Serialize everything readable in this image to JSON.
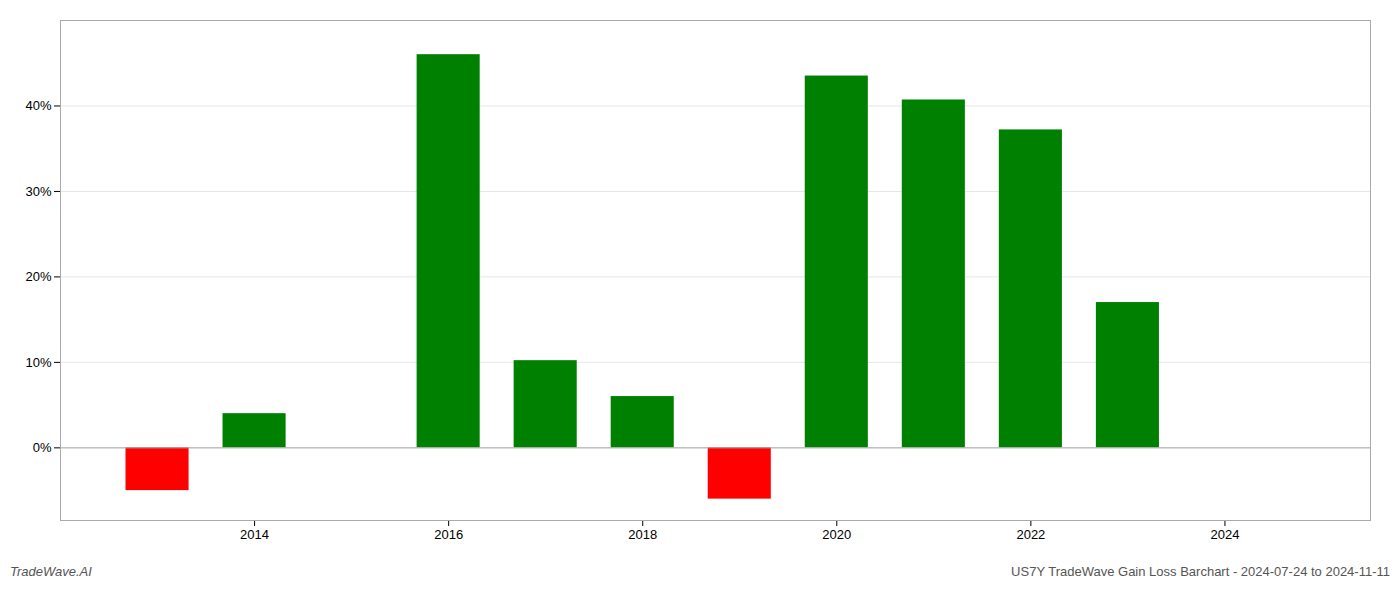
{
  "chart_data": {
    "type": "bar",
    "x": [
      2013,
      2014,
      2016,
      2017,
      2018,
      2019,
      2020,
      2021,
      2022,
      2023
    ],
    "values": [
      -5.0,
      4.0,
      46.0,
      10.2,
      6.0,
      -6.0,
      43.5,
      40.7,
      37.2,
      17.0
    ],
    "colors": [
      "#ff0000",
      "#008000",
      "#008000",
      "#008000",
      "#008000",
      "#ff0000",
      "#008000",
      "#008000",
      "#008000",
      "#008000"
    ],
    "xlim": [
      2012.0,
      2025.5
    ],
    "xticks": [
      2014,
      2016,
      2018,
      2020,
      2022,
      2024
    ],
    "ylim": [
      -8.5,
      50.0
    ],
    "yticks": [
      {
        "value": 0,
        "label": "0%"
      },
      {
        "value": 10,
        "label": "10%"
      },
      {
        "value": 20,
        "label": "20%"
      },
      {
        "value": 30,
        "label": "30%"
      },
      {
        "value": 40,
        "label": "40%"
      }
    ],
    "grid": true,
    "annotations": [
      "TradeWave.AI",
      "US7Y TradeWave Gain Loss Barchart - 2024-07-24 to 2024-11-11"
    ]
  }
}
